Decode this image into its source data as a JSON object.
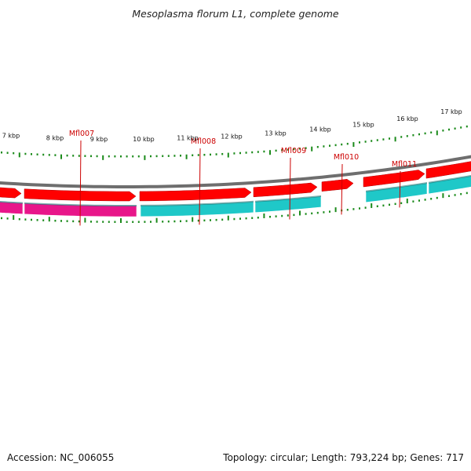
{
  "title": "Mesoplasma florum L1, complete genome",
  "footer": {
    "accession": "Accession: NC_006055",
    "summary": "Topology: circular; Length: 793,224 bp; Genes: 717"
  },
  "colors": {
    "cds_forward": "#e8168a",
    "cds_reverse": "#1fc8c8",
    "gene": "#ff0000",
    "backbone": "#777777",
    "ticks": "#1a8a1a",
    "label": "#cc0000"
  },
  "gene_labels": [
    "Mfl007",
    "Mfl008",
    "Mfl009",
    "Mfl010",
    "Mfl011"
  ],
  "kbp_labels": [
    "7 kbp",
    "8 kbp",
    "9 kbp",
    "10 kbp",
    "11 kbp",
    "12 kbp",
    "13 kbp",
    "14 kbp",
    "15 kbp",
    "16 kbp",
    "17 kbp"
  ]
}
